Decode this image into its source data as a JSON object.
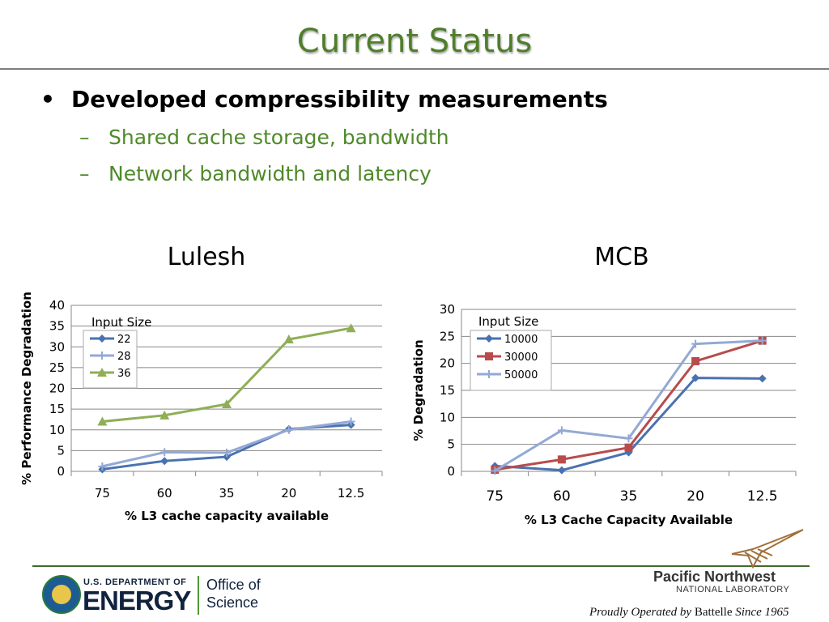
{
  "slide": {
    "title": "Current Status",
    "bullet": "Developed compressibility measurements",
    "bullet_marker": "•",
    "sub_marker": "–",
    "sub_bullets": [
      "Shared cache storage, bandwidth",
      "Network bandwidth and latency"
    ]
  },
  "footer": {
    "doe_dept": "U.S. DEPARTMENT OF",
    "doe_energy": "ENERGY",
    "office_line1": "Office of",
    "office_line2": "Science",
    "pnnl_name": "Pacific Northwest",
    "pnnl_lab": "NATIONAL LABORATORY",
    "operated_pre": "Proudly Operated by",
    "operated_brand": "Battelle",
    "operated_post": "Since 1965"
  },
  "colors": {
    "title": "#4f7e2a",
    "sub_bullet": "#4f8a2a",
    "rule": "#3f6b2c"
  },
  "chart_data": [
    {
      "type": "line",
      "title": "Lulesh",
      "xlabel": "% L3 cache capacity available",
      "ylabel": "% Performance Degradation",
      "categories": [
        "75",
        "60",
        "35",
        "20",
        "12.5"
      ],
      "ylim": [
        0,
        40
      ],
      "yticks": [
        0,
        5,
        10,
        15,
        20,
        25,
        30,
        35,
        40
      ],
      "grid": true,
      "legend_title": "Input Size",
      "legend_position": "top-left",
      "series": [
        {
          "name": "22",
          "values": [
            0.5,
            2.5,
            3.5,
            10.2,
            11.2
          ],
          "color": "#4a72b0",
          "marker": "diamond"
        },
        {
          "name": "28",
          "values": [
            1.2,
            4.6,
            4.5,
            10.0,
            12.0
          ],
          "color": "#93a9d4",
          "marker": "plus"
        },
        {
          "name": "36",
          "values": [
            12.0,
            13.5,
            16.2,
            31.8,
            34.5
          ],
          "color": "#8fae56",
          "marker": "triangle"
        }
      ]
    },
    {
      "type": "line",
      "title": "MCB",
      "xlabel": "% L3 Cache Capacity Available",
      "ylabel": "% Degradation",
      "categories": [
        "75",
        "60",
        "35",
        "20",
        "12.5"
      ],
      "ylim": [
        0,
        30
      ],
      "yticks": [
        0,
        5,
        10,
        15,
        20,
        25,
        30
      ],
      "grid": true,
      "legend_title": "Input Size",
      "legend_position": "top-left",
      "series": [
        {
          "name": "10000",
          "values": [
            1.0,
            0.2,
            3.5,
            17.3,
            17.2
          ],
          "color": "#4a72b0",
          "marker": "diamond"
        },
        {
          "name": "30000",
          "values": [
            0.3,
            2.2,
            4.4,
            20.4,
            24.2
          ],
          "color": "#b84b4b",
          "marker": "square"
        },
        {
          "name": "50000",
          "values": [
            0.1,
            7.6,
            6.1,
            23.6,
            24.2
          ],
          "color": "#93a9d4",
          "marker": "plus"
        }
      ]
    }
  ]
}
